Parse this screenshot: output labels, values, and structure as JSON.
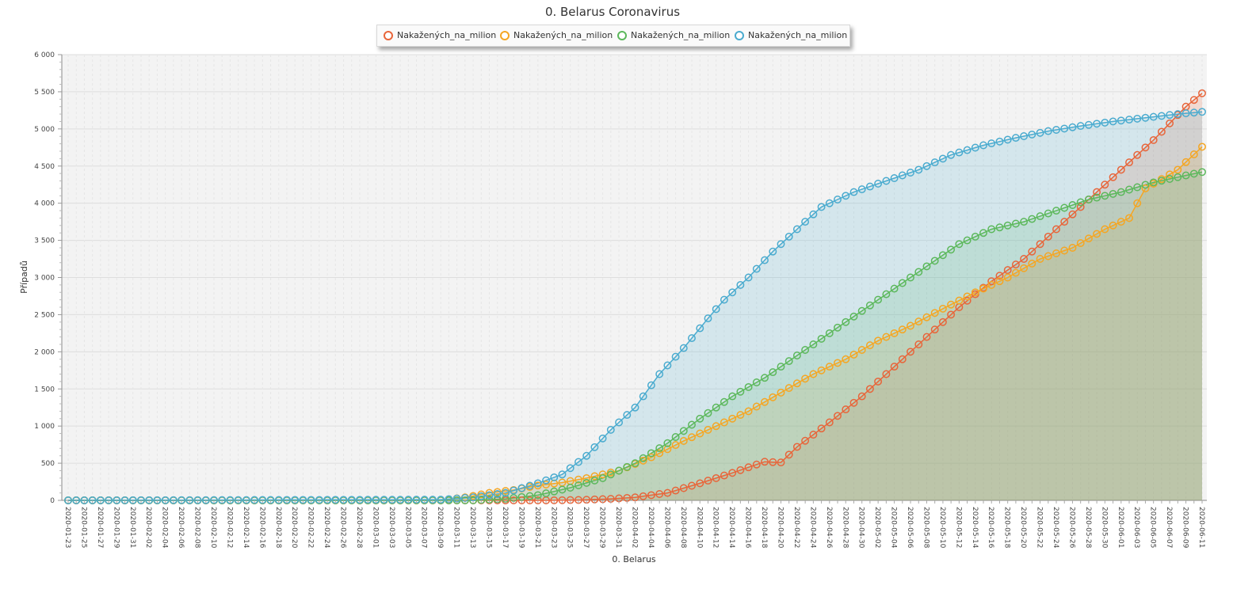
{
  "chart_data": {
    "type": "area",
    "title": "0. Belarus Coronavirus",
    "xlabel": "0. Belarus",
    "ylabel": "Případů",
    "ylim": [
      0,
      6000
    ],
    "yticks": [
      "0",
      "500",
      "1 000",
      "1 500",
      "2 000",
      "2 500",
      "3 000",
      "3 500",
      "4 000",
      "4 500",
      "5 000",
      "5 500",
      "6 000"
    ],
    "ytick_values": [
      0,
      500,
      1000,
      1500,
      2000,
      2500,
      3000,
      3500,
      4000,
      4500,
      5000,
      5500,
      6000
    ],
    "grid": true,
    "legend_position": "top",
    "x_start": "2020-01-23",
    "x_end": "2020-06-11",
    "x_label_step": 2,
    "series": [
      {
        "name": "Nakažených_na_milion",
        "color": "#e8653a",
        "points": [
          [
            "2020-01-23",
            0
          ],
          [
            "2020-03-22",
            0
          ],
          [
            "2020-03-26",
            5
          ],
          [
            "2020-03-30",
            20
          ],
          [
            "2020-04-02",
            40
          ],
          [
            "2020-04-06",
            100
          ],
          [
            "2020-04-10",
            230
          ],
          [
            "2020-04-14",
            370
          ],
          [
            "2020-04-18",
            520
          ],
          [
            "2020-04-20",
            510
          ],
          [
            "2020-04-22",
            720
          ],
          [
            "2020-04-26",
            1050
          ],
          [
            "2020-04-30",
            1400
          ],
          [
            "2020-05-04",
            1800
          ],
          [
            "2020-05-08",
            2200
          ],
          [
            "2020-05-12",
            2600
          ],
          [
            "2020-05-16",
            2950
          ],
          [
            "2020-05-20",
            3250
          ],
          [
            "2020-05-24",
            3650
          ],
          [
            "2020-05-28",
            4050
          ],
          [
            "2020-06-01",
            4450
          ],
          [
            "2020-06-05",
            4850
          ],
          [
            "2020-06-09",
            5300
          ],
          [
            "2020-06-11",
            5480
          ]
        ]
      },
      {
        "name": "Nakažených_na_milion",
        "color": "#f5a623",
        "points": [
          [
            "2020-01-23",
            0
          ],
          [
            "2020-03-09",
            0
          ],
          [
            "2020-03-12",
            40
          ],
          [
            "2020-03-15",
            100
          ],
          [
            "2020-03-18",
            140
          ],
          [
            "2020-03-21",
            200
          ],
          [
            "2020-03-24",
            240
          ],
          [
            "2020-03-27",
            300
          ],
          [
            "2020-03-31",
            400
          ],
          [
            "2020-04-04",
            580
          ],
          [
            "2020-04-08",
            800
          ],
          [
            "2020-04-12",
            1000
          ],
          [
            "2020-04-16",
            1200
          ],
          [
            "2020-04-20",
            1450
          ],
          [
            "2020-04-24",
            1700
          ],
          [
            "2020-04-28",
            1900
          ],
          [
            "2020-05-02",
            2150
          ],
          [
            "2020-05-06",
            2350
          ],
          [
            "2020-05-10",
            2580
          ],
          [
            "2020-05-14",
            2800
          ],
          [
            "2020-05-18",
            3000
          ],
          [
            "2020-05-22",
            3250
          ],
          [
            "2020-05-26",
            3400
          ],
          [
            "2020-05-30",
            3650
          ],
          [
            "2020-06-02",
            3800
          ],
          [
            "2020-06-04",
            4200
          ],
          [
            "2020-06-08",
            4450
          ],
          [
            "2020-06-11",
            4760
          ]
        ]
      },
      {
        "name": "Nakažených_na_milion",
        "color": "#5cb85c",
        "points": [
          [
            "2020-01-23",
            0
          ],
          [
            "2020-03-13",
            0
          ],
          [
            "2020-03-17",
            20
          ],
          [
            "2020-03-21",
            70
          ],
          [
            "2020-03-25",
            170
          ],
          [
            "2020-03-29",
            300
          ],
          [
            "2020-04-02",
            500
          ],
          [
            "2020-04-06",
            770
          ],
          [
            "2020-04-10",
            1100
          ],
          [
            "2020-04-14",
            1400
          ],
          [
            "2020-04-18",
            1650
          ],
          [
            "2020-04-22",
            1950
          ],
          [
            "2020-04-26",
            2250
          ],
          [
            "2020-04-30",
            2550
          ],
          [
            "2020-05-04",
            2850
          ],
          [
            "2020-05-08",
            3150
          ],
          [
            "2020-05-12",
            3450
          ],
          [
            "2020-05-16",
            3650
          ],
          [
            "2020-05-20",
            3750
          ],
          [
            "2020-05-24",
            3900
          ],
          [
            "2020-05-28",
            4050
          ],
          [
            "2020-06-01",
            4150
          ],
          [
            "2020-06-05",
            4280
          ],
          [
            "2020-06-11",
            4420
          ]
        ]
      },
      {
        "name": "Nakažených_na_milion",
        "color": "#4aabcf",
        "points": [
          [
            "2020-01-23",
            0
          ],
          [
            "2020-03-09",
            10
          ],
          [
            "2020-03-13",
            40
          ],
          [
            "2020-03-17",
            100
          ],
          [
            "2020-03-21",
            230
          ],
          [
            "2020-03-24",
            350
          ],
          [
            "2020-03-27",
            600
          ],
          [
            "2020-03-30",
            950
          ],
          [
            "2020-04-02",
            1250
          ],
          [
            "2020-04-05",
            1700
          ],
          [
            "2020-04-08",
            2050
          ],
          [
            "2020-04-11",
            2450
          ],
          [
            "2020-04-13",
            2700
          ],
          [
            "2020-04-16",
            3000
          ],
          [
            "2020-04-19",
            3350
          ],
          [
            "2020-04-22",
            3650
          ],
          [
            "2020-04-25",
            3950
          ],
          [
            "2020-04-29",
            4150
          ],
          [
            "2020-05-03",
            4300
          ],
          [
            "2020-05-07",
            4450
          ],
          [
            "2020-05-11",
            4650
          ],
          [
            "2020-05-15",
            4780
          ],
          [
            "2020-05-19",
            4880
          ],
          [
            "2020-05-23",
            4970
          ],
          [
            "2020-05-27",
            5040
          ],
          [
            "2020-05-31",
            5100
          ],
          [
            "2020-06-04",
            5150
          ],
          [
            "2020-06-08",
            5200
          ],
          [
            "2020-06-11",
            5230
          ]
        ]
      }
    ]
  }
}
